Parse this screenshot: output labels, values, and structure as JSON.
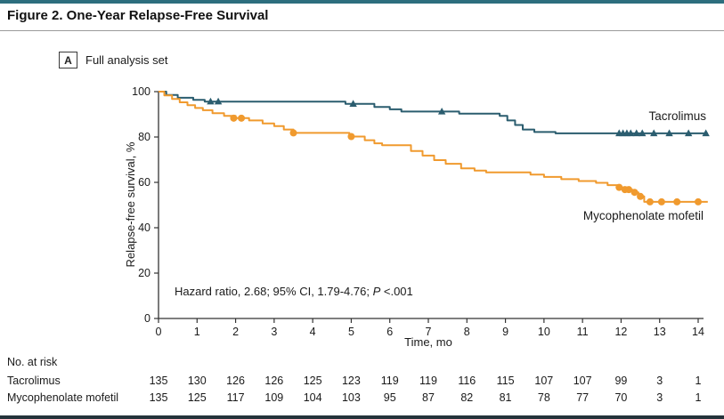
{
  "header": {
    "title": "Figure 2. One-Year Relapse-Free Survival"
  },
  "panel": {
    "label": "A",
    "caption": "Full analysis set"
  },
  "chart_data": {
    "type": "line",
    "subtype": "kaplan-meier-step",
    "title": "",
    "xlabel": "Time, mo",
    "ylabel": "Relapse-free survival, %",
    "xlim": [
      0,
      14.25
    ],
    "ylim": [
      0,
      100
    ],
    "xticks": [
      0,
      1,
      2,
      3,
      4,
      5,
      6,
      7,
      8,
      9,
      10,
      11,
      12,
      13,
      14
    ],
    "yticks": [
      0,
      20,
      40,
      60,
      80,
      100
    ],
    "grid": false,
    "legend_position": "on-curve-right",
    "annotation": {
      "text": "Hazard ratio, 2.68; 95% CI, 1.79-4.76; ",
      "p_italic": "P",
      "p_rest": " <.001"
    },
    "axis_color": "#333333",
    "series": [
      {
        "name": "Tacrolimus",
        "color": "#2b5d6f",
        "marker": "triangle",
        "steps": [
          [
            0,
            100
          ],
          [
            0.2,
            98.5
          ],
          [
            0.5,
            97.3
          ],
          [
            0.9,
            96.4
          ],
          [
            1.2,
            95.6
          ],
          [
            4.85,
            94.6
          ],
          [
            5.6,
            93.2
          ],
          [
            6.0,
            92.2
          ],
          [
            6.3,
            91.2
          ],
          [
            7.8,
            90.3
          ],
          [
            8.85,
            89.3
          ],
          [
            9.05,
            87.3
          ],
          [
            9.25,
            85.3
          ],
          [
            9.45,
            83.3
          ],
          [
            9.75,
            82.2
          ],
          [
            10.3,
            81.6
          ]
        ],
        "censor_marks": [
          [
            1.35,
            95.6
          ],
          [
            1.55,
            95.6
          ],
          [
            5.05,
            94.6
          ],
          [
            7.35,
            91.2
          ],
          [
            11.95,
            81.6
          ],
          [
            12.05,
            81.6
          ],
          [
            12.15,
            81.6
          ],
          [
            12.25,
            81.6
          ],
          [
            12.4,
            81.6
          ],
          [
            12.55,
            81.6
          ],
          [
            12.85,
            81.6
          ],
          [
            13.25,
            81.6
          ],
          [
            13.75,
            81.6
          ],
          [
            14.2,
            81.6
          ]
        ]
      },
      {
        "name": "Mycophenolate mofetil",
        "color": "#f09a2e",
        "marker": "circle",
        "steps": [
          [
            0,
            100
          ],
          [
            0.15,
            98.3
          ],
          [
            0.35,
            96.8
          ],
          [
            0.55,
            95.3
          ],
          [
            0.75,
            94.0
          ],
          [
            0.95,
            92.8
          ],
          [
            1.15,
            91.8
          ],
          [
            1.4,
            90.5
          ],
          [
            1.7,
            89.3
          ],
          [
            2.0,
            88.3
          ],
          [
            2.35,
            87.3
          ],
          [
            2.7,
            86.0
          ],
          [
            3.0,
            84.8
          ],
          [
            3.25,
            83.3
          ],
          [
            3.5,
            81.8
          ],
          [
            4.95,
            80.2
          ],
          [
            5.35,
            78.6
          ],
          [
            5.6,
            77.2
          ],
          [
            5.8,
            76.4
          ],
          [
            6.55,
            73.8
          ],
          [
            6.85,
            71.8
          ],
          [
            7.15,
            69.8
          ],
          [
            7.45,
            68.2
          ],
          [
            7.85,
            66.2
          ],
          [
            8.2,
            65.2
          ],
          [
            8.5,
            64.4
          ],
          [
            9.65,
            63.4
          ],
          [
            10.0,
            62.4
          ],
          [
            10.45,
            61.4
          ],
          [
            10.9,
            60.6
          ],
          [
            11.35,
            59.8
          ],
          [
            11.65,
            58.8
          ],
          [
            11.95,
            57.8
          ],
          [
            12.15,
            56.8
          ],
          [
            12.3,
            55.6
          ],
          [
            12.45,
            53.8
          ],
          [
            12.6,
            51.4
          ]
        ],
        "censor_marks": [
          [
            1.95,
            88.3
          ],
          [
            2.15,
            88.3
          ],
          [
            3.5,
            81.8
          ],
          [
            5.0,
            80.2
          ],
          [
            11.95,
            57.8
          ],
          [
            12.1,
            56.8
          ],
          [
            12.2,
            56.8
          ],
          [
            12.35,
            55.6
          ],
          [
            12.5,
            53.8
          ],
          [
            12.75,
            51.4
          ],
          [
            13.05,
            51.4
          ],
          [
            13.45,
            51.4
          ],
          [
            14.0,
            51.4
          ]
        ]
      }
    ]
  },
  "risk_table": {
    "heading": "No. at risk",
    "times": [
      0,
      1,
      2,
      3,
      4,
      5,
      6,
      7,
      8,
      9,
      10,
      11,
      12,
      13,
      14
    ],
    "rows": [
      {
        "label": "Tacrolimus",
        "values": [
          135,
          130,
          126,
          126,
          125,
          123,
          119,
          119,
          116,
          115,
          107,
          107,
          99,
          3,
          1
        ]
      },
      {
        "label": "Mycophenolate mofetil",
        "values": [
          135,
          125,
          117,
          109,
          104,
          103,
          95,
          87,
          82,
          81,
          78,
          77,
          70,
          3,
          1
        ]
      }
    ]
  }
}
